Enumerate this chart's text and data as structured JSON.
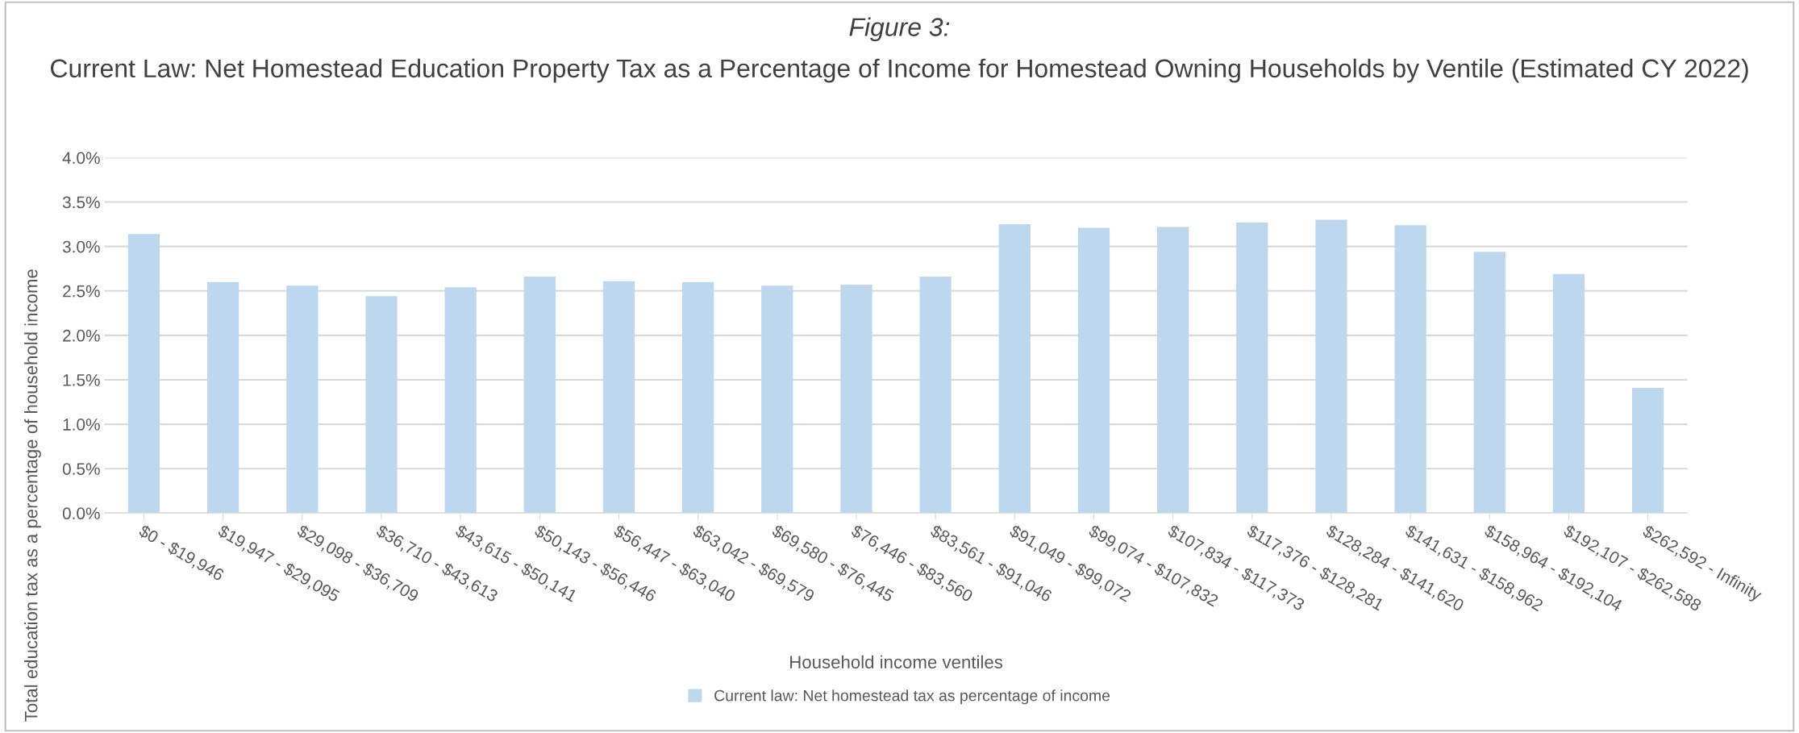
{
  "chart_data": {
    "type": "bar",
    "title": "Figure 3:",
    "subtitle": "Current Law: Net Homestead Education Property Tax as a Percentage of Income for Homestead Owning Households by Ventile (Estimated CY 2022)",
    "xlabel": "Household income ventiles",
    "ylabel": "Total education tax as a percentage of household income",
    "categories": [
      "$0 - $19,946",
      "$19,947 - $29,095",
      "$29,098 - $36,709",
      "$36,710 - $43,613",
      "$43,615 - $50,141",
      "$50,143 - $56,446",
      "$56,447 - $63,040",
      "$63,042 - $69,579",
      "$69,580 - $76,445",
      "$76,446 - $83,560",
      "$83,561 - $91,046",
      "$91,049 - $99,072",
      "$99,074 - $107,832",
      "$107,834 - $117,373",
      "$117,376 - $128,281",
      "$128,284 - $141,620",
      "$141,631 - $158,962",
      "$158,964 - $192,104",
      "$192,107 - $262,588",
      "$262,592 - Infinity"
    ],
    "series": [
      {
        "name": "Current law: Net homestead tax as percentage of income",
        "color": "#bdd7ee",
        "values": [
          3.14,
          2.6,
          2.56,
          2.44,
          2.54,
          2.66,
          2.61,
          2.6,
          2.56,
          2.57,
          2.66,
          3.25,
          3.21,
          3.22,
          3.27,
          3.3,
          3.24,
          2.94,
          2.69,
          1.41
        ]
      }
    ],
    "ylim": [
      0,
      4.0
    ],
    "yticks": [
      {
        "value": 0,
        "label": "0.0%"
      },
      {
        "value": 0.5,
        "label": "0.5%"
      },
      {
        "value": 1.0,
        "label": "1.0%"
      },
      {
        "value": 1.5,
        "label": "1.5%"
      },
      {
        "value": 2.0,
        "label": "2.0%"
      },
      {
        "value": 2.5,
        "label": "2.5%"
      },
      {
        "value": 3.0,
        "label": "3.0%"
      },
      {
        "value": 3.5,
        "label": "3.5%"
      },
      {
        "value": 4.0,
        "label": "4.0%"
      }
    ],
    "grid": "y",
    "legend": "bottom"
  }
}
